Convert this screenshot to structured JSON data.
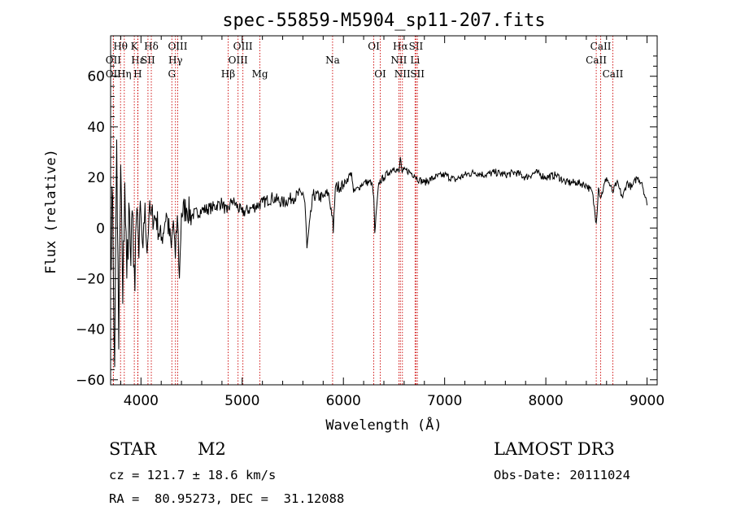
{
  "chart_data": {
    "type": "line",
    "title": "spec-55859-M5904_sp11-207.fits",
    "xlabel": "Wavelength (Å)",
    "ylabel": "Flux (relative)",
    "xlim": [
      3700,
      9100
    ],
    "ylim": [
      -62,
      76
    ],
    "x_ticks": [
      4000,
      5000,
      6000,
      7000,
      8000,
      9000
    ],
    "y_ticks": [
      -60,
      -40,
      -20,
      0,
      20,
      40,
      60
    ],
    "series": [
      {
        "name": "flux",
        "x": [
          3700,
          3720,
          3740,
          3760,
          3780,
          3800,
          3820,
          3840,
          3860,
          3880,
          3900,
          3920,
          3940,
          3960,
          3980,
          4000,
          4020,
          4040,
          4060,
          4080,
          4100,
          4150,
          4200,
          4250,
          4300,
          4320,
          4340,
          4360,
          4380,
          4400,
          4450,
          4500,
          4600,
          4700,
          4800,
          4850,
          4900,
          5000,
          5100,
          5200,
          5300,
          5400,
          5500,
          5600,
          5620,
          5640,
          5700,
          5800,
          5850,
          5890,
          5900,
          5920,
          6000,
          6050,
          6080,
          6100,
          6150,
          6200,
          6280,
          6300,
          6310,
          6350,
          6400,
          6450,
          6500,
          6550,
          6562,
          6580,
          6620,
          6700,
          6750,
          6800,
          6900,
          7000,
          7100,
          7200,
          7300,
          7400,
          7500,
          7600,
          7700,
          7800,
          7900,
          8000,
          8100,
          8200,
          8300,
          8400,
          8460,
          8498,
          8520,
          8542,
          8600,
          8662,
          8700,
          8760,
          8800,
          8850,
          8900,
          8950,
          9000
        ],
        "y": [
          -10,
          12,
          -55,
          35,
          -48,
          25,
          -30,
          18,
          -20,
          10,
          -15,
          5,
          -25,
          8,
          -12,
          5,
          -8,
          10,
          -10,
          6,
          5,
          4,
          -5,
          6,
          -8,
          3,
          -12,
          5,
          -20,
          6,
          8,
          5,
          7,
          8,
          10,
          6,
          11,
          6,
          8,
          10,
          12,
          10,
          12,
          14,
          10,
          -8,
          13,
          12,
          14,
          5,
          -2,
          16,
          17,
          20,
          22,
          14,
          16,
          18,
          18,
          12,
          -2,
          18,
          20,
          22,
          24,
          22,
          28,
          22,
          23,
          21,
          19,
          18,
          20,
          21,
          19,
          21,
          22,
          21,
          22,
          21,
          22,
          20,
          22,
          20,
          21,
          18,
          18,
          17,
          14,
          2,
          16,
          12,
          20,
          14,
          18,
          12,
          18,
          16,
          20,
          18,
          9
        ]
      }
    ],
    "annotations": [
      {
        "label": "Hθ",
        "wl": 3798,
        "row": 1
      },
      {
        "label": "OII",
        "wl": 3727,
        "row": 2
      },
      {
        "label": "OII",
        "wl": 3727,
        "row": 3
      },
      {
        "label": "Hε",
        "wl": 3970,
        "row": 2
      },
      {
        "label": "Hη",
        "wl": 3835,
        "row": 3
      },
      {
        "label": "K",
        "wl": 3934,
        "row": 1
      },
      {
        "label": "H",
        "wl": 3968,
        "row": 3
      },
      {
        "label": "SII",
        "wl": 4069,
        "row": 2
      },
      {
        "label": "Hδ",
        "wl": 4102,
        "row": 1
      },
      {
        "label": "OIII",
        "wl": 4363,
        "row": 1
      },
      {
        "label": "Hγ",
        "wl": 4341,
        "row": 2
      },
      {
        "label": "G",
        "wl": 4305,
        "row": 3
      },
      {
        "label": "Hβ",
        "wl": 4861,
        "row": 3
      },
      {
        "label": "OIII",
        "wl": 5007,
        "row": 1
      },
      {
        "label": "OIII",
        "wl": 4959,
        "row": 2
      },
      {
        "label": "Mg",
        "wl": 5175,
        "row": 3
      },
      {
        "label": "Na",
        "wl": 5893,
        "row": 2
      },
      {
        "label": "OI",
        "wl": 6300,
        "row": 1
      },
      {
        "label": "OI",
        "wl": 6364,
        "row": 3
      },
      {
        "label": "Hα",
        "wl": 6563,
        "row": 1
      },
      {
        "label": "NII",
        "wl": 6548,
        "row": 2
      },
      {
        "label": "NII",
        "wl": 6583,
        "row": 3
      },
      {
        "label": "SII",
        "wl": 6717,
        "row": 1
      },
      {
        "label": "Li",
        "wl": 6708,
        "row": 2
      },
      {
        "label": "SII",
        "wl": 6731,
        "row": 3
      },
      {
        "label": "CaII",
        "wl": 8542,
        "row": 1
      },
      {
        "label": "CaII",
        "wl": 8498,
        "row": 2
      },
      {
        "label": "CaII",
        "wl": 8662,
        "row": 3
      }
    ]
  },
  "info": {
    "object_class": "STAR",
    "subclass": "M2",
    "survey": "LAMOST DR3",
    "redshift": "cz = 121.7 ± 18.6 km/s",
    "obs_date": "Obs-Date: 20111024",
    "coords": "RA =  80.95273, DEC =  31.12088"
  },
  "colors": {
    "line": "#000000",
    "marker": "#cc0000"
  }
}
